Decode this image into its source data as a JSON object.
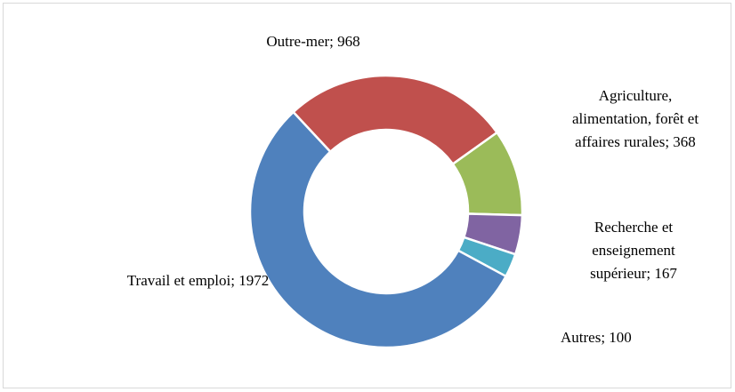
{
  "chart_data": {
    "type": "pie",
    "categories": [
      "Outre-mer",
      "Agriculture, alimentation, forêt et affaires rurales",
      "Recherche et enseignement supérieur",
      "Autres",
      "Travail et emploi"
    ],
    "values": [
      968,
      368,
      167,
      100,
      1972
    ],
    "value_labels": [
      "Outre-mer; 968",
      "Agriculture, alimentation, forêt et affaires rurales; 368",
      "Recherche et enseignement supérieur; 167",
      "Autres; 100",
      "Travail et emploi; 1972"
    ],
    "colors": [
      "#c0504d",
      "#9bbb59",
      "#8064a2",
      "#4bacc6",
      "#4f81bd"
    ],
    "donut": true
  }
}
